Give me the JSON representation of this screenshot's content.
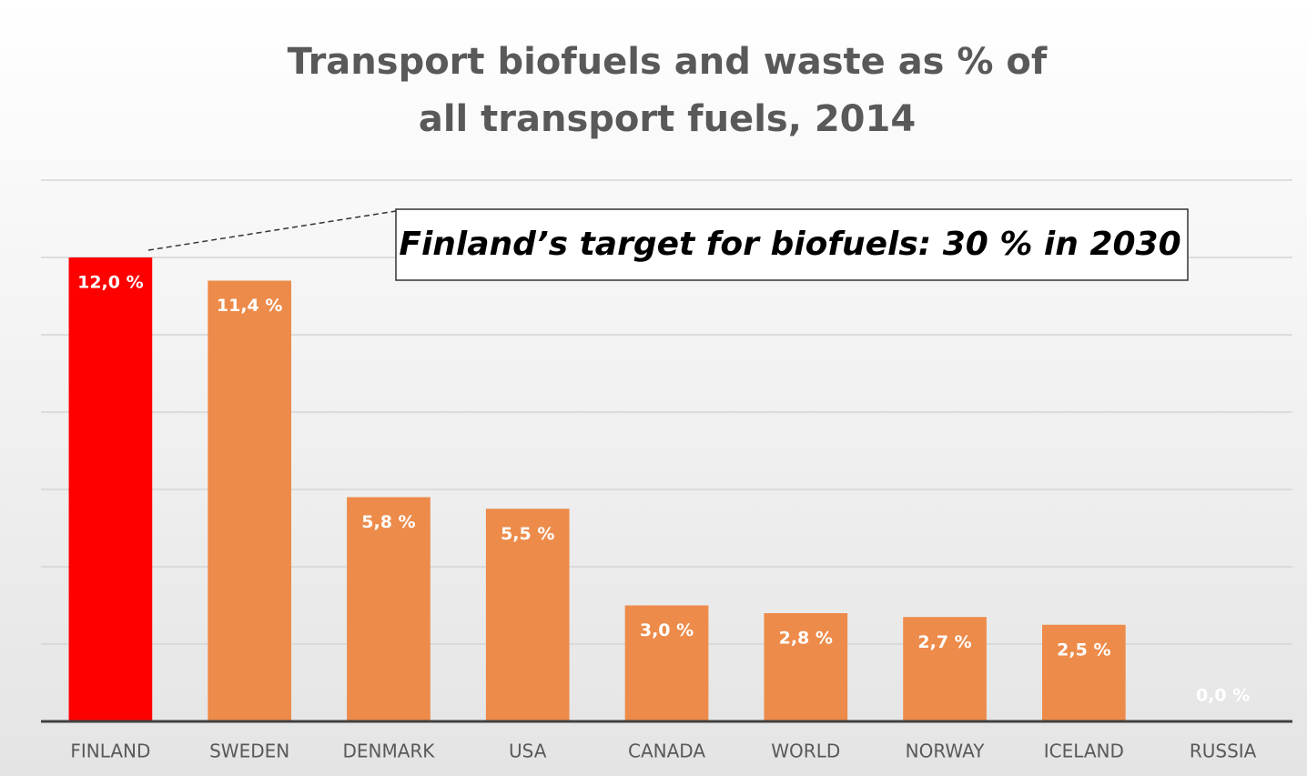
{
  "chart_data": {
    "type": "bar",
    "title": [
      "Transport biofuels and waste as % of",
      "all transport fuels, 2014"
    ],
    "annotation": "Finland’s target for biofuels: 30 % in 2030",
    "categories": [
      "FINLAND",
      "SWEDEN",
      "DENMARK",
      "USA",
      "CANADA",
      "WORLD",
      "NORWAY",
      "ICELAND",
      "RUSSIA"
    ],
    "values": [
      12.0,
      11.4,
      5.8,
      5.5,
      3.0,
      2.8,
      2.7,
      2.5,
      0.0
    ],
    "value_labels": [
      "12,0 %",
      "11,4 %",
      "5,8 %",
      "5,5 %",
      "3,0 %",
      "2,8 %",
      "2,7 %",
      "2,5 %",
      "0,0 %"
    ],
    "colors": [
      "#ff0000",
      "#ed8b4a",
      "#ed8b4a",
      "#ed8b4a",
      "#ed8b4a",
      "#ed8b4a",
      "#ed8b4a",
      "#ed8b4a",
      "#ed8b4a"
    ],
    "ylim": [
      0,
      14
    ],
    "yticks": [
      0,
      2,
      4,
      6,
      8,
      10,
      12,
      14
    ],
    "grid": true
  }
}
